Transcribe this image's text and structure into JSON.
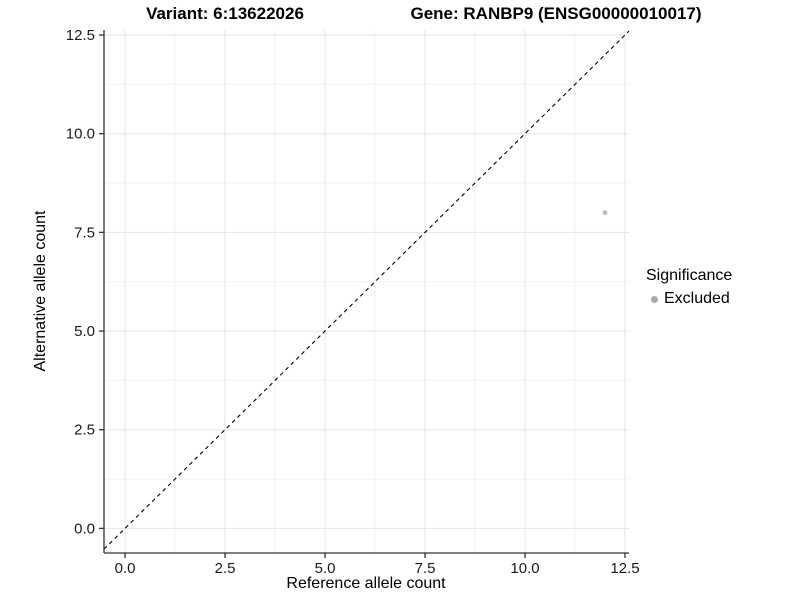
{
  "figure": {
    "title_left": "Variant: 6:13622026",
    "title_right": "Gene: RANBP9 (ENSG00000010017)"
  },
  "chart_data": {
    "type": "scatter",
    "title": "Variant: 6:13622026   Gene: RANBP9 (ENSG00000010017)",
    "xlabel": "Reference allele count",
    "ylabel": "Alternative allele count",
    "xlim": [
      -0.53,
      12.6
    ],
    "ylim": [
      -0.62,
      12.63
    ],
    "xticks": {
      "values": [
        0,
        2.5,
        5,
        7.5,
        10,
        12.5
      ],
      "labels": [
        "0.0",
        "2.5",
        "5.0",
        "7.5",
        "10.0",
        "12.5"
      ]
    },
    "yticks": {
      "values": [
        0,
        2.5,
        5,
        7.5,
        10,
        12.5
      ],
      "labels": [
        "0.0",
        "2.5",
        "5.0",
        "7.5",
        "10.0",
        "12.5"
      ]
    },
    "minor_xticks": [
      1.25,
      3.75,
      6.25,
      8.75,
      11.25
    ],
    "minor_yticks": [
      1.25,
      3.75,
      6.25,
      8.75,
      11.25
    ],
    "grid": "major+minor",
    "series": [
      {
        "name": "Excluded",
        "marker_color": "#bfbfbf",
        "marker_radius": 2.5,
        "points": [
          {
            "x": 12,
            "y": 8
          }
        ]
      }
    ],
    "reference_line": {
      "type": "identity",
      "equation": "y = x",
      "style": "dashed",
      "color": "#000000"
    },
    "legend": {
      "title": "Significance",
      "position": "right",
      "items": [
        {
          "label": "Excluded",
          "marker_color": "#a8a8a8"
        }
      ]
    }
  },
  "colors": {
    "background": "#ffffff",
    "axis_line": "#333333",
    "grid_major": "#e5e5e5",
    "grid_minor": "#f2f2f2",
    "tick_text": "#1a1a1a",
    "title_text": "#000000"
  }
}
